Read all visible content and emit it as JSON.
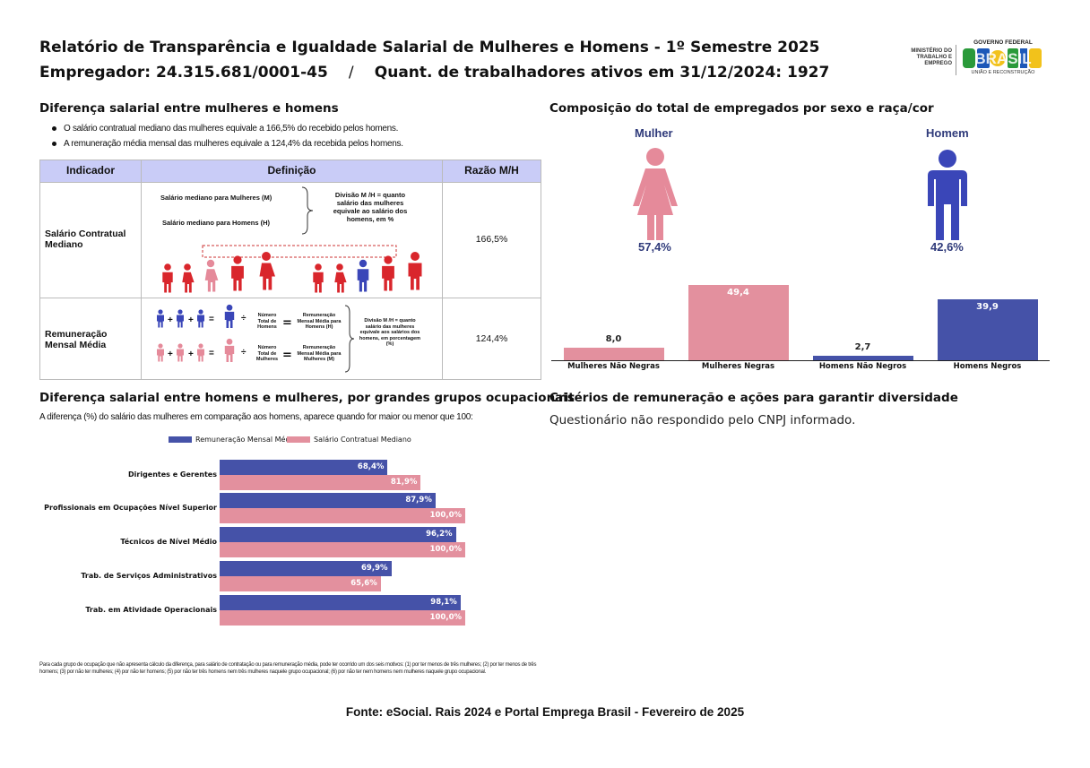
{
  "header": {
    "title_line1": "Relatório de Transparência e Igualdade Salarial de Mulheres e Homens - 1º Semestre 2025",
    "employer": "Empregador: 24.315.681/0001-45",
    "separator": "/",
    "active_workers": "Quant. de trabalhadores ativos em 31/12/2024: 1927"
  },
  "logo": {
    "ministry": "MINISTÉRIO DO TRABALHO E EMPREGO",
    "gov_top": "GOVERNO FEDERAL",
    "brand": "BRASIL",
    "gov_bottom": "UNIÃO E RECONSTRUÇÃO"
  },
  "salary_gap": {
    "title": "Diferença salarial entre mulheres e homens",
    "bullets": [
      "O salário contratual mediano das mulheres equivale a 166,5% do recebido pelos homens.",
      "A remuneração média mensal das mulheres equivale a 124,4% da recebida pelos homens."
    ],
    "table": {
      "headers": [
        "Indicador",
        "Definição",
        "Razão M/H"
      ],
      "rows": [
        {
          "indicator": "Salário Contratual Mediano",
          "ratio": "166,5%",
          "def_women": "Salário mediano para Mulheres (M)",
          "def_men": "Salário mediano para Homens (H)",
          "def_division": "Divisão M /H = quanto salário das mulheres equivale ao salário dos homens, em %"
        },
        {
          "indicator": "Remuneração Mensal Média",
          "ratio": "124,4%",
          "def_men_total": "Número Total de Homens",
          "def_men_result": "Remuneração Mensal Média para Homens (H)",
          "def_women_total": "Número Total de Mulheres",
          "def_women_result": "Remuneração Mensal Média para Mulheres (M)",
          "def_division": "Divisão M /H = quanto salário das mulheres equivale aos salários dos homens, em porcentagem (%)"
        }
      ]
    }
  },
  "composition": {
    "title": "Composição do total de empregados por sexo e raça/cor",
    "women_label": "Mulher",
    "women_pct": "57,4%",
    "men_label": "Homem",
    "men_pct": "42,6%",
    "colors": {
      "women": "#e58a9a",
      "men": "#3a46b8"
    }
  },
  "chart_data": [
    {
      "type": "bar",
      "title": "Composição do total de empregados por sexo e raça/cor",
      "categories": [
        "Mulheres Não Negras",
        "Mulheres Negras",
        "Homens Não Negros",
        "Homens Negros"
      ],
      "values": [
        8.0,
        49.4,
        2.7,
        39.9
      ],
      "labels": [
        "8,0",
        "49,4",
        "2,7",
        "39,9"
      ],
      "colors": [
        "#e3909e",
        "#e3909e",
        "#4552a8",
        "#4552a8"
      ],
      "ylim": [
        0,
        49.4
      ]
    },
    {
      "type": "bar",
      "orientation": "horizontal",
      "title": "Diferença salarial entre homens e mulheres, por grandes grupos ocupacionais",
      "categories": [
        "Dirigentes e Gerentes",
        "Profissionais em Ocupações Nível Superior",
        "Técnicos de Nível Médio",
        "Trab. de Serviços Administrativos",
        "Trab. em Atividade Operacionais"
      ],
      "series": [
        {
          "name": "Remuneração Mensal Média",
          "color": "#4552a8",
          "values": [
            68.4,
            87.9,
            96.2,
            69.9,
            98.1
          ],
          "labels": [
            "68,4%",
            "87,9%",
            "96,2%",
            "69,9%",
            "98,1%"
          ]
        },
        {
          "name": "Salário Contratual Mediano",
          "color": "#e3909e",
          "values": [
            81.9,
            100.0,
            100.0,
            65.6,
            100.0
          ],
          "labels": [
            "81,9%",
            "100,0%",
            "100,0%",
            "65,6%",
            "100,0%"
          ]
        }
      ],
      "xlim": [
        0,
        100
      ]
    }
  ],
  "occupational": {
    "title": "Diferença salarial entre homens e mulheres, por grandes grupos ocupacionais",
    "subtitle": "A diferença (%) do salário das mulheres em comparação aos homens, aparece quando for maior ou menor que 100:",
    "legend_a": "Remuneração Mensal Média",
    "legend_b": "Salário Contratual Mediano",
    "categories": [
      "Dirigentes e Gerentes",
      "Profissionais em Ocupações Nível Superior",
      "Técnicos de Nível Médio",
      "Trab. de Serviços Administrativos",
      "Trab. em Atividade Operacionais"
    ],
    "footnote": "Para cada grupo de ocupação que não apresenta cálculo da diferença, para salário de contratação ou para remuneração média, pode ter ocorrido um dos seis motivos: (1) por ter menos de três mulheres; (2) por ter menos de três homens; (3) por não ter mulheres; (4) por não ter homens; (5) por não ter três homens nem três mulheres naquele grupo ocupacional; (6) por não ter nem homens nem mulheres naquele grupo ocupacional."
  },
  "criteria": {
    "title": "Critérios de remuneração e ações para garantir diversidade",
    "text": "Questionário não respondido pelo CNPJ informado."
  },
  "source": "Fonte: eSocial. Rais 2024 e Portal Emprega Brasil - Fevereiro de 2025"
}
